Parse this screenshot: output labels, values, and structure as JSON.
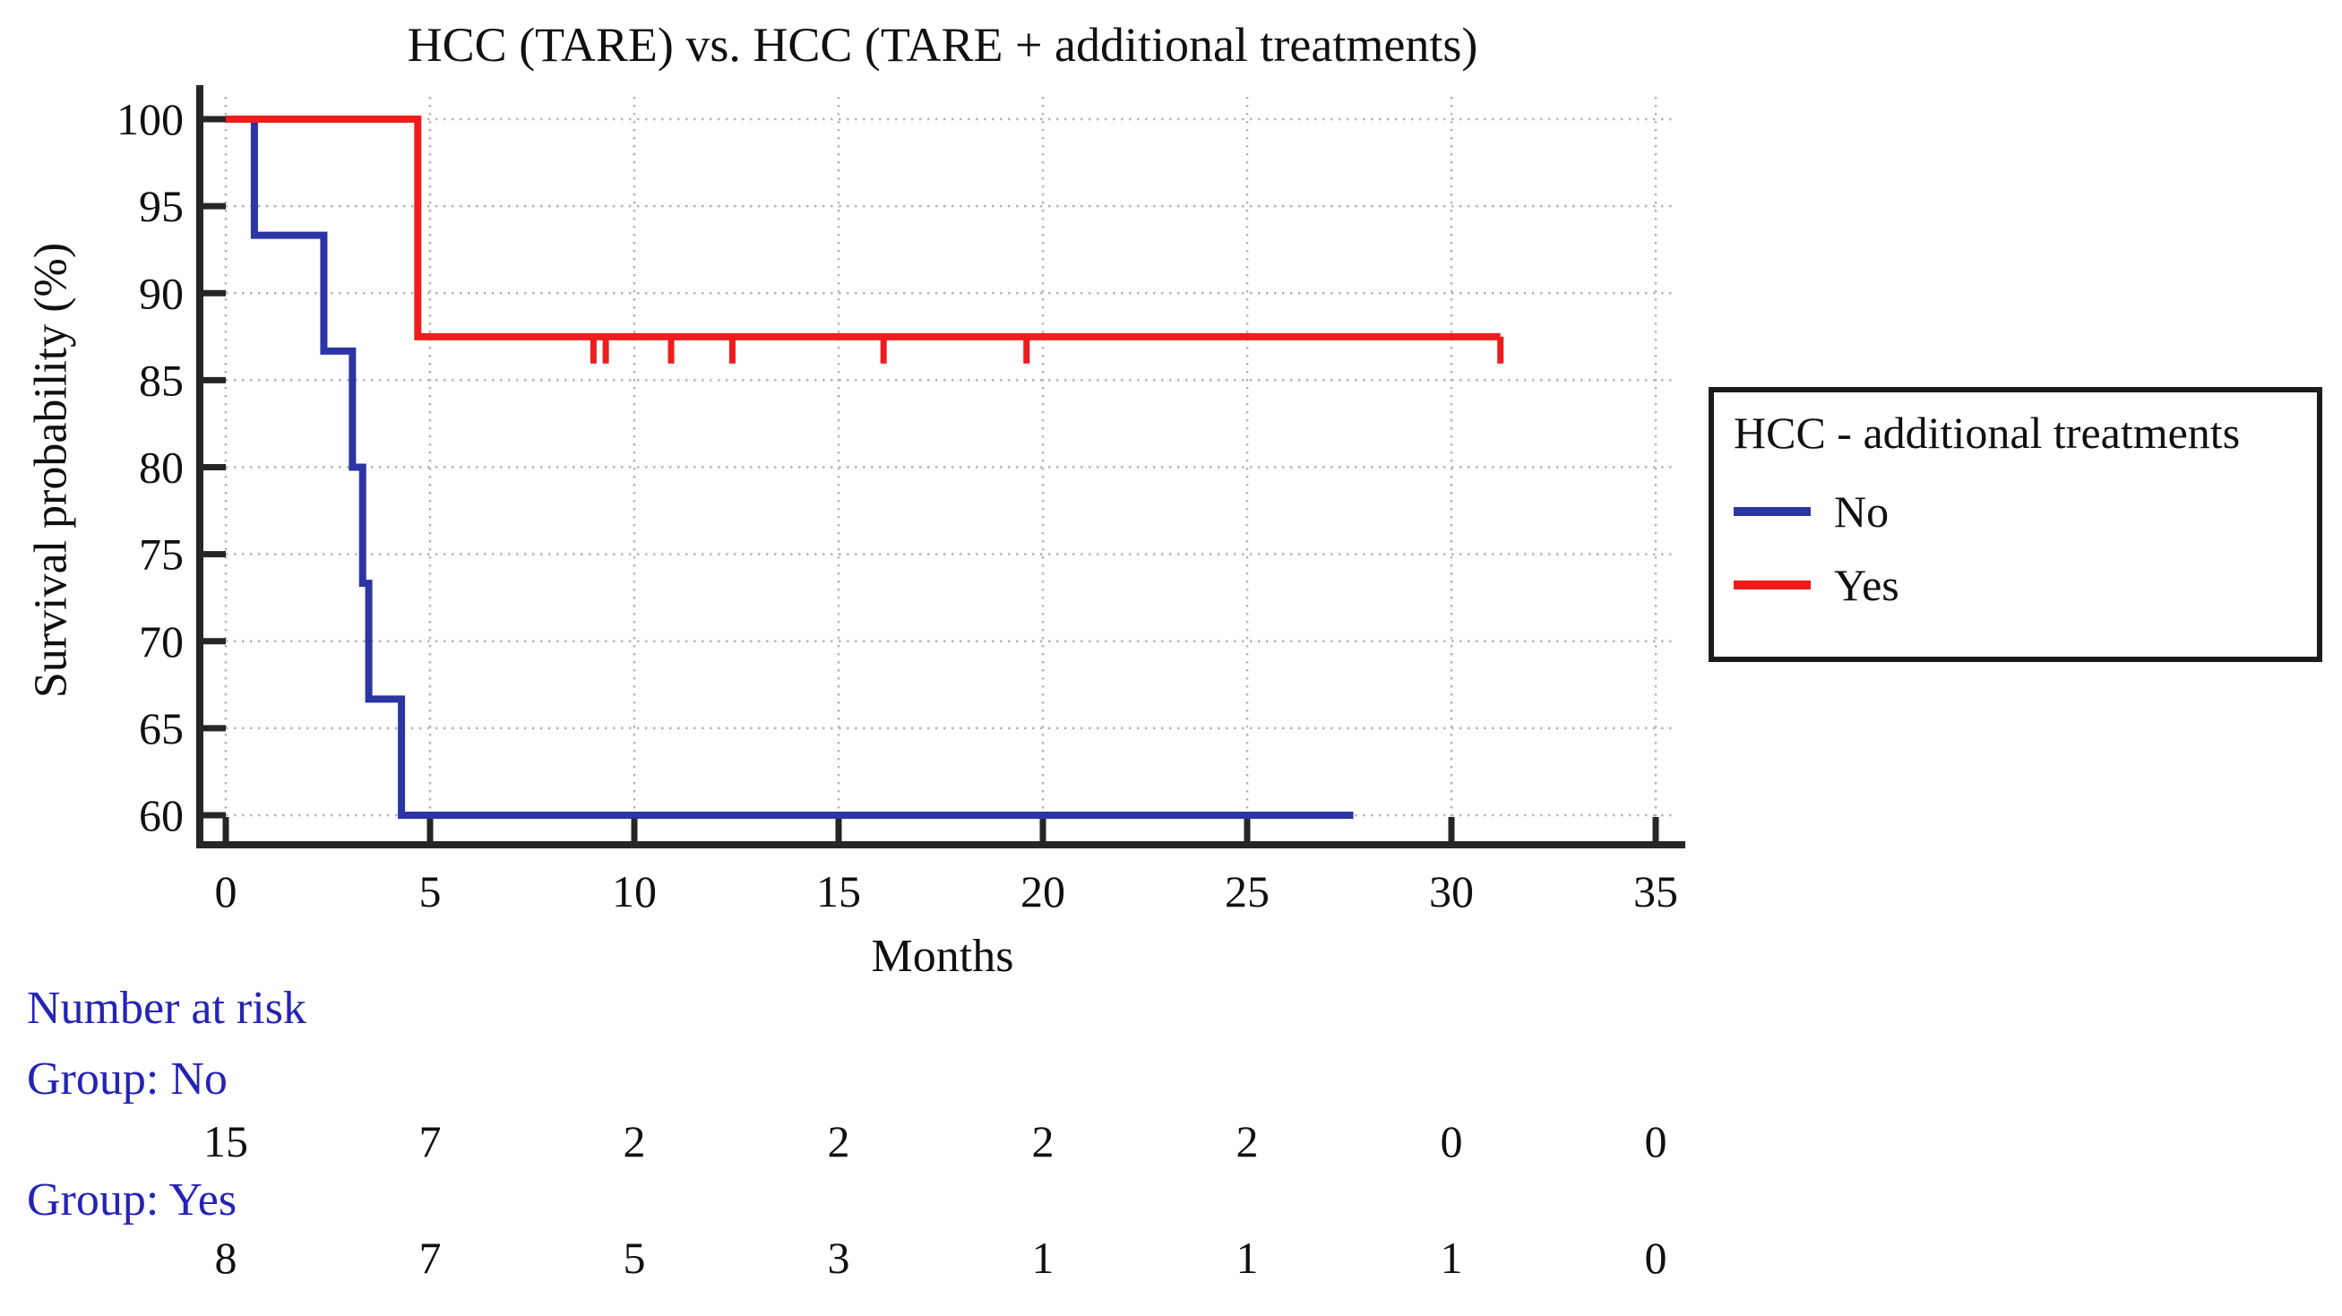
{
  "chart_data": {
    "type": "line",
    "variant": "kaplan_meier_step",
    "title": "HCC (TARE) vs. HCC (TARE + additional treatments)",
    "xlabel": "Months",
    "ylabel": "Survival probability (%)",
    "x_ticks": [
      0,
      5,
      10,
      15,
      20,
      25,
      30,
      35
    ],
    "y_ticks": [
      100,
      95,
      90,
      85,
      80,
      75,
      70,
      65,
      60
    ],
    "xlim": [
      0,
      35
    ],
    "ylim": [
      60,
      100
    ],
    "grid": "dotted",
    "text_color": "#101010",
    "axis_color": "#262626",
    "grid_color": "#b4b4b4",
    "label_blue": "#2424b4",
    "legend": {
      "title": "HCC - additional treatments",
      "position": "right-outside",
      "entries": [
        {
          "label": "No",
          "color": "#2c35a4"
        },
        {
          "label": "Yes",
          "color": "#ee1c1c"
        }
      ]
    },
    "series": [
      {
        "name": "No",
        "color": "#2c35a4",
        "points": [
          [
            0,
            100
          ],
          [
            0.7,
            100
          ],
          [
            0.7,
            93.33
          ],
          [
            2.4,
            93.33
          ],
          [
            2.4,
            86.67
          ],
          [
            3.1,
            86.67
          ],
          [
            3.1,
            80
          ],
          [
            3.35,
            80
          ],
          [
            3.35,
            73.33
          ],
          [
            3.5,
            73.33
          ],
          [
            3.5,
            66.67
          ],
          [
            4.3,
            66.67
          ],
          [
            4.3,
            60
          ],
          [
            27.6,
            60
          ]
        ],
        "censor_marks": []
      },
      {
        "name": "Yes",
        "color": "#ee1c1c",
        "points": [
          [
            0,
            100
          ],
          [
            4.7,
            100
          ],
          [
            4.7,
            87.5
          ],
          [
            31.2,
            87.5
          ]
        ],
        "censor_marks": [
          [
            9.0,
            87.5
          ],
          [
            9.3,
            87.5
          ],
          [
            10.9,
            87.5
          ],
          [
            12.4,
            87.5
          ],
          [
            16.1,
            87.5
          ],
          [
            19.6,
            87.5
          ],
          [
            31.2,
            87.5
          ]
        ]
      }
    ],
    "risk_table": {
      "heading": "Number at risk",
      "months": [
        0,
        5,
        10,
        15,
        20,
        25,
        30,
        35
      ],
      "groups": [
        {
          "label": "Group: No",
          "counts": [
            "15",
            "7",
            "2",
            "2",
            "2",
            "2",
            "0",
            "0"
          ]
        },
        {
          "label": "Group: Yes",
          "counts": [
            "8",
            "7",
            "5",
            "3",
            "1",
            "1",
            "1",
            "0"
          ]
        }
      ]
    }
  }
}
